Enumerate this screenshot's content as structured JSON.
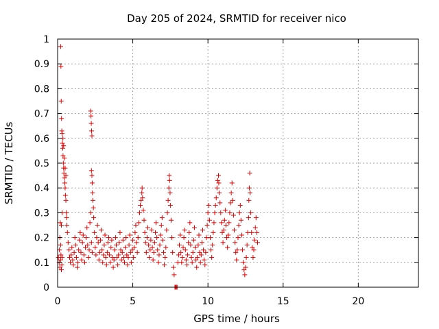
{
  "chart_data": {
    "type": "scatter",
    "title": "Day 205 of 2024, SRMTID for receiver nico",
    "xlabel": "GPS time / hours",
    "ylabel": "SRMTID / TECUs",
    "xlim": [
      0,
      24
    ],
    "ylim": [
      0,
      1
    ],
    "xticks": [
      0,
      5,
      10,
      15,
      20
    ],
    "xtick_labels": [
      "0",
      "5",
      "10",
      "15",
      "20"
    ],
    "yticks": [
      0,
      0.1,
      0.2,
      0.3,
      0.4,
      0.5,
      0.6,
      0.7,
      0.8,
      0.9,
      1
    ],
    "ytick_labels": [
      "0",
      "0.1",
      "0.2",
      "0.3",
      "0.4",
      "0.5",
      "0.6",
      "0.7",
      "0.8",
      "0.9",
      "1"
    ],
    "grid": true,
    "marker": "+",
    "series": [
      {
        "name": "SRMTID",
        "color": "#e00000",
        "points": [
          [
            0.05,
            0.12
          ],
          [
            0.1,
            0.1
          ],
          [
            0.12,
            0.15
          ],
          [
            0.15,
            0.08
          ],
          [
            0.18,
            0.26
          ],
          [
            0.2,
            0.11
          ],
          [
            0.22,
            0.13
          ],
          [
            0.25,
            0.07
          ],
          [
            0.28,
            0.09
          ],
          [
            0.3,
            0.12
          ],
          [
            0.15,
            0.2
          ],
          [
            0.2,
            0.17
          ],
          [
            0.25,
            0.25
          ],
          [
            0.3,
            0.3
          ],
          [
            0.2,
            0.97
          ],
          [
            0.22,
            0.89
          ],
          [
            0.24,
            0.75
          ],
          [
            0.26,
            0.68
          ],
          [
            0.28,
            0.63
          ],
          [
            0.3,
            0.62
          ],
          [
            0.32,
            0.58
          ],
          [
            0.34,
            0.56
          ],
          [
            0.36,
            0.53
          ],
          [
            0.38,
            0.5
          ],
          [
            0.4,
            0.48
          ],
          [
            0.42,
            0.46
          ],
          [
            0.45,
            0.44
          ],
          [
            0.48,
            0.42
          ],
          [
            0.5,
            0.4
          ],
          [
            0.52,
            0.37
          ],
          [
            0.55,
            0.35
          ],
          [
            0.58,
            0.3
          ],
          [
            0.6,
            0.28
          ],
          [
            0.62,
            0.25
          ],
          [
            0.35,
            0.6
          ],
          [
            0.4,
            0.57
          ],
          [
            0.45,
            0.52
          ],
          [
            0.5,
            0.48
          ],
          [
            0.55,
            0.45
          ],
          [
            0.65,
            0.22
          ],
          [
            0.7,
            0.18
          ],
          [
            0.75,
            0.15
          ],
          [
            0.8,
            0.12
          ],
          [
            0.85,
            0.1
          ],
          [
            0.9,
            0.13
          ],
          [
            0.95,
            0.16
          ],
          [
            1.0,
            0.11
          ],
          [
            1.05,
            0.09
          ],
          [
            1.1,
            0.14
          ],
          [
            1.15,
            0.2
          ],
          [
            1.2,
            0.17
          ],
          [
            1.25,
            0.12
          ],
          [
            1.3,
            0.08
          ],
          [
            1.35,
            0.1
          ],
          [
            1.4,
            0.15
          ],
          [
            1.45,
            0.19
          ],
          [
            1.5,
            0.22
          ],
          [
            1.55,
            0.14
          ],
          [
            1.6,
            0.11
          ],
          [
            1.65,
            0.18
          ],
          [
            1.7,
            0.21
          ],
          [
            1.75,
            0.13
          ],
          [
            1.8,
            0.1
          ],
          [
            1.85,
            0.16
          ],
          [
            1.9,
            0.2
          ],
          [
            1.95,
            0.24
          ],
          [
            2.0,
            0.17
          ],
          [
            2.05,
            0.12
          ],
          [
            2.1,
            0.15
          ],
          [
            2.15,
            0.26
          ],
          [
            2.2,
            0.3
          ],
          [
            2.25,
            0.18
          ],
          [
            2.3,
            0.14
          ],
          [
            2.2,
            0.71
          ],
          [
            2.22,
            0.69
          ],
          [
            2.24,
            0.66
          ],
          [
            2.26,
            0.63
          ],
          [
            2.28,
            0.61
          ],
          [
            2.25,
            0.47
          ],
          [
            2.28,
            0.45
          ],
          [
            2.3,
            0.42
          ],
          [
            2.32,
            0.38
          ],
          [
            2.35,
            0.35
          ],
          [
            2.38,
            0.32
          ],
          [
            2.4,
            0.28
          ],
          [
            2.45,
            0.22
          ],
          [
            2.5,
            0.16
          ],
          [
            2.55,
            0.13
          ],
          [
            2.6,
            0.2
          ],
          [
            2.65,
            0.25
          ],
          [
            2.7,
            0.18
          ],
          [
            2.75,
            0.11
          ],
          [
            2.8,
            0.14
          ],
          [
            2.85,
            0.19
          ],
          [
            2.9,
            0.23
          ],
          [
            2.95,
            0.15
          ],
          [
            3.0,
            0.1
          ],
          [
            3.05,
            0.13
          ],
          [
            3.1,
            0.17
          ],
          [
            3.15,
            0.21
          ],
          [
            3.2,
            0.12
          ],
          [
            3.25,
            0.09
          ],
          [
            3.3,
            0.14
          ],
          [
            3.35,
            0.18
          ],
          [
            3.4,
            0.2
          ],
          [
            3.45,
            0.13
          ],
          [
            3.5,
            0.1
          ],
          [
            3.55,
            0.16
          ],
          [
            3.6,
            0.19
          ],
          [
            3.65,
            0.12
          ],
          [
            3.7,
            0.08
          ],
          [
            3.75,
            0.11
          ],
          [
            3.8,
            0.15
          ],
          [
            3.85,
            0.2
          ],
          [
            3.9,
            0.17
          ],
          [
            3.95,
            0.12
          ],
          [
            4.0,
            0.09
          ],
          [
            4.05,
            0.13
          ],
          [
            4.1,
            0.18
          ],
          [
            4.15,
            0.22
          ],
          [
            4.2,
            0.15
          ],
          [
            4.25,
            0.11
          ],
          [
            4.3,
            0.14
          ],
          [
            4.35,
            0.19
          ],
          [
            4.4,
            0.12
          ],
          [
            4.45,
            0.1
          ],
          [
            4.5,
            0.16
          ],
          [
            4.55,
            0.2
          ],
          [
            4.6,
            0.13
          ],
          [
            4.65,
            0.09
          ],
          [
            4.7,
            0.12
          ],
          [
            4.75,
            0.17
          ],
          [
            4.8,
            0.21
          ],
          [
            4.85,
            0.14
          ],
          [
            4.9,
            0.1
          ],
          [
            4.95,
            0.15
          ],
          [
            5.0,
            0.19
          ],
          [
            5.05,
            0.12
          ],
          [
            5.1,
            0.16
          ],
          [
            5.15,
            0.22
          ],
          [
            5.2,
            0.25
          ],
          [
            5.25,
            0.18
          ],
          [
            5.3,
            0.14
          ],
          [
            5.35,
            0.2
          ],
          [
            5.4,
            0.26
          ],
          [
            5.45,
            0.3
          ],
          [
            5.5,
            0.33
          ],
          [
            5.55,
            0.35
          ],
          [
            5.6,
            0.38
          ],
          [
            5.62,
            0.4
          ],
          [
            5.65,
            0.36
          ],
          [
            5.7,
            0.31
          ],
          [
            5.75,
            0.27
          ],
          [
            5.8,
            0.22
          ],
          [
            5.85,
            0.18
          ],
          [
            5.9,
            0.14
          ],
          [
            5.95,
            0.2
          ],
          [
            6.0,
            0.24
          ],
          [
            6.05,
            0.17
          ],
          [
            6.1,
            0.12
          ],
          [
            6.15,
            0.15
          ],
          [
            6.2,
            0.19
          ],
          [
            6.25,
            0.23
          ],
          [
            6.3,
            0.16
          ],
          [
            6.35,
            0.11
          ],
          [
            6.4,
            0.14
          ],
          [
            6.45,
            0.18
          ],
          [
            6.5,
            0.22
          ],
          [
            6.55,
            0.26
          ],
          [
            6.6,
            0.2
          ],
          [
            6.65,
            0.15
          ],
          [
            6.7,
            0.1
          ],
          [
            6.75,
            0.13
          ],
          [
            6.8,
            0.17
          ],
          [
            6.85,
            0.21
          ],
          [
            6.9,
            0.25
          ],
          [
            6.95,
            0.28
          ],
          [
            7.0,
            0.19
          ],
          [
            7.05,
            0.14
          ],
          [
            7.1,
            0.09
          ],
          [
            7.15,
            0.12
          ],
          [
            7.2,
            0.16
          ],
          [
            7.25,
            0.23
          ],
          [
            7.3,
            0.3
          ],
          [
            7.35,
            0.35
          ],
          [
            7.4,
            0.4
          ],
          [
            7.42,
            0.45
          ],
          [
            7.45,
            0.43
          ],
          [
            7.48,
            0.38
          ],
          [
            7.5,
            0.33
          ],
          [
            7.55,
            0.27
          ],
          [
            7.6,
            0.2
          ],
          [
            7.65,
            0.14
          ],
          [
            7.7,
            0.08
          ],
          [
            7.75,
            0.05
          ],
          [
            7.8,
            0.0
          ],
          [
            7.85,
            0.0
          ],
          [
            7.9,
            0.0
          ],
          [
            7.95,
            0.0
          ],
          [
            8.0,
            0.1
          ],
          [
            8.05,
            0.13
          ],
          [
            8.1,
            0.17
          ],
          [
            8.15,
            0.21
          ],
          [
            8.2,
            0.14
          ],
          [
            8.25,
            0.1
          ],
          [
            8.3,
            0.12
          ],
          [
            8.35,
            0.16
          ],
          [
            8.4,
            0.2
          ],
          [
            8.45,
            0.23
          ],
          [
            8.5,
            0.15
          ],
          [
            8.55,
            0.11
          ],
          [
            8.6,
            0.09
          ],
          [
            8.65,
            0.13
          ],
          [
            8.7,
            0.18
          ],
          [
            8.75,
            0.22
          ],
          [
            8.8,
            0.26
          ],
          [
            8.85,
            0.17
          ],
          [
            8.9,
            0.12
          ],
          [
            8.95,
            0.1
          ],
          [
            9.0,
            0.14
          ],
          [
            9.05,
            0.19
          ],
          [
            9.1,
            0.24
          ],
          [
            9.15,
            0.16
          ],
          [
            9.2,
            0.11
          ],
          [
            9.25,
            0.08
          ],
          [
            9.3,
            0.12
          ],
          [
            9.35,
            0.17
          ],
          [
            9.4,
            0.21
          ],
          [
            9.45,
            0.14
          ],
          [
            9.5,
            0.1
          ],
          [
            9.55,
            0.13
          ],
          [
            9.6,
            0.18
          ],
          [
            9.65,
            0.23
          ],
          [
            9.7,
            0.15
          ],
          [
            9.75,
            0.11
          ],
          [
            9.8,
            0.09
          ],
          [
            9.85,
            0.14
          ],
          [
            9.9,
            0.2
          ],
          [
            9.95,
            0.25
          ],
          [
            10.0,
            0.3
          ],
          [
            10.05,
            0.33
          ],
          [
            10.1,
            0.27
          ],
          [
            10.15,
            0.2
          ],
          [
            10.2,
            0.15
          ],
          [
            10.25,
            0.12
          ],
          [
            10.3,
            0.17
          ],
          [
            10.35,
            0.22
          ],
          [
            10.4,
            0.26
          ],
          [
            10.45,
            0.3
          ],
          [
            10.5,
            0.33
          ],
          [
            10.55,
            0.36
          ],
          [
            10.6,
            0.4
          ],
          [
            10.65,
            0.43
          ],
          [
            10.7,
            0.45
          ],
          [
            10.72,
            0.42
          ],
          [
            10.75,
            0.38
          ],
          [
            10.8,
            0.34
          ],
          [
            10.85,
            0.3
          ],
          [
            10.9,
            0.26
          ],
          [
            10.95,
            0.22
          ],
          [
            11.0,
            0.18
          ],
          [
            11.05,
            0.23
          ],
          [
            11.1,
            0.27
          ],
          [
            11.15,
            0.31
          ],
          [
            11.2,
            0.25
          ],
          [
            11.25,
            0.2
          ],
          [
            11.3,
            0.16
          ],
          [
            11.35,
            0.21
          ],
          [
            11.4,
            0.26
          ],
          [
            11.45,
            0.3
          ],
          [
            11.5,
            0.34
          ],
          [
            11.55,
            0.38
          ],
          [
            11.6,
            0.42
          ],
          [
            11.65,
            0.35
          ],
          [
            11.7,
            0.29
          ],
          [
            11.75,
            0.23
          ],
          [
            11.8,
            0.18
          ],
          [
            11.85,
            0.14
          ],
          [
            11.9,
            0.11
          ],
          [
            11.95,
            0.15
          ],
          [
            12.0,
            0.2
          ],
          [
            12.05,
            0.25
          ],
          [
            12.1,
            0.3
          ],
          [
            12.15,
            0.33
          ],
          [
            12.2,
            0.27
          ],
          [
            12.25,
            0.21
          ],
          [
            12.3,
            0.15
          ],
          [
            12.35,
            0.1
          ],
          [
            12.4,
            0.07
          ],
          [
            12.45,
            0.05
          ],
          [
            12.5,
            0.08
          ],
          [
            12.55,
            0.12
          ],
          [
            12.6,
            0.17
          ],
          [
            12.65,
            0.22
          ],
          [
            12.7,
            0.28
          ],
          [
            12.72,
            0.35
          ],
          [
            12.75,
            0.4
          ],
          [
            12.78,
            0.46
          ],
          [
            12.8,
            0.38
          ],
          [
            12.85,
            0.3
          ],
          [
            12.9,
            0.22
          ],
          [
            12.95,
            0.16
          ],
          [
            13.0,
            0.12
          ],
          [
            13.05,
            0.15
          ],
          [
            13.1,
            0.19
          ],
          [
            13.15,
            0.24
          ],
          [
            13.2,
            0.28
          ],
          [
            13.25,
            0.22
          ],
          [
            13.3,
            0.18
          ]
        ]
      }
    ]
  }
}
